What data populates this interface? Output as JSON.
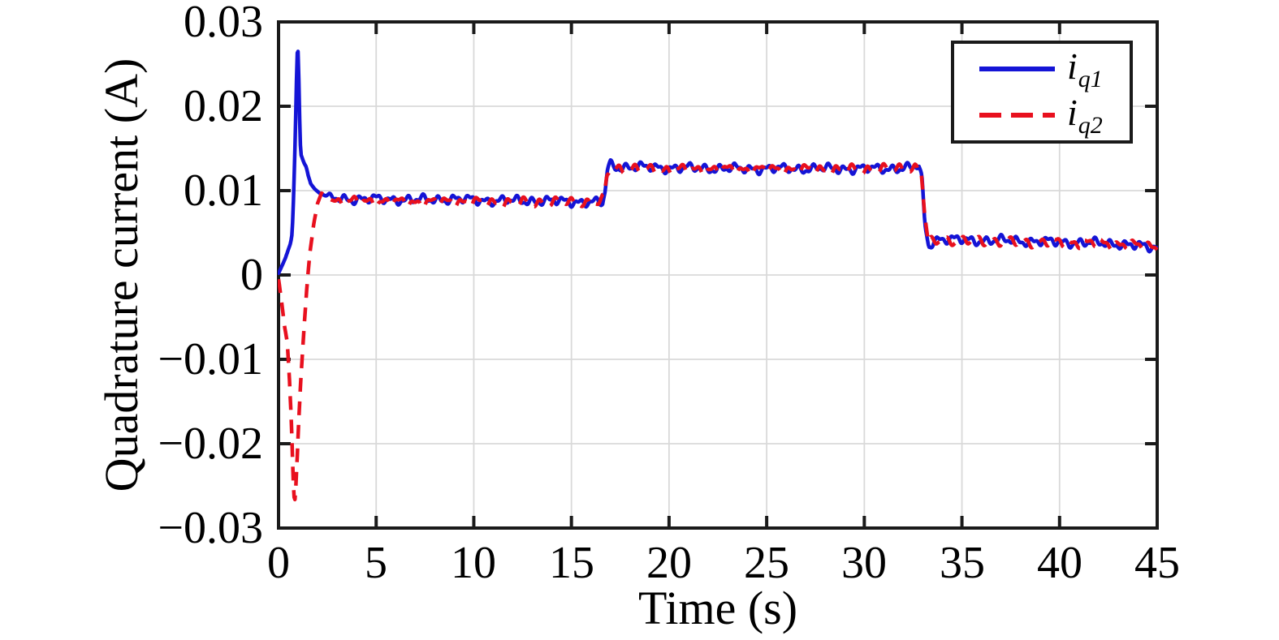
{
  "figure": {
    "background": "#ffffff"
  },
  "colors": {
    "grid": "#d9d9d9",
    "spine": "#1a1a1a",
    "text": "#000000",
    "series1": "#1414d6",
    "series2": "#e8101e"
  },
  "axes": {
    "xlabel": "Time (s)",
    "ylabel": "Quadrature current (A)",
    "x_tick_labels": [
      "0",
      "5",
      "10",
      "15",
      "20",
      "25",
      "30",
      "35",
      "40",
      "45"
    ],
    "y_tick_labels": [
      "0.03",
      "0.02",
      "0.01",
      "0",
      "−0.01",
      "−0.02",
      "−0.03"
    ]
  },
  "legend": {
    "position": "top-right",
    "entries": [
      {
        "base": "i",
        "sub": "q1",
        "color": "#1414d6",
        "style": "solid"
      },
      {
        "base": "i",
        "sub": "q2",
        "color": "#e8101e",
        "style": "dashed"
      }
    ]
  },
  "chart_data": {
    "type": "line",
    "title": "",
    "xlabel": "Time (s)",
    "ylabel": "Quadrature current (A)",
    "xlim": [
      0,
      45
    ],
    "ylim": [
      -0.03,
      0.03
    ],
    "xticks": [
      0,
      5,
      10,
      15,
      20,
      25,
      30,
      35,
      40,
      45
    ],
    "yticks": [
      -0.03,
      -0.02,
      -0.01,
      0,
      0.01,
      0.02,
      0.03
    ],
    "grid": true,
    "legend_position": "top-right",
    "description": "Two quadrature current responses: initial transient (blue spike to +0.027 A, red dip to -0.027 A near t=1 s), settling near 0.0087 A, step up to ~0.0126 A at t~16.7 s, step down to ~0.004 A at t~33.1 s, slight decay to ~0.0033 A at t=45 s.",
    "series": [
      {
        "name": "i_q1",
        "color": "#1414d6",
        "line_style": "solid",
        "line_width": 4.5,
        "keypoints": [
          [
            0,
            0.0002
          ],
          [
            0.2,
            0.0012
          ],
          [
            0.35,
            0.002
          ],
          [
            0.5,
            0.003
          ],
          [
            0.62,
            0.0038
          ],
          [
            0.7,
            0.005
          ],
          [
            0.75,
            0.008
          ],
          [
            0.82,
            0.013
          ],
          [
            0.88,
            0.019
          ],
          [
            0.93,
            0.024
          ],
          [
            0.97,
            0.0271
          ],
          [
            1.01,
            0.0263
          ],
          [
            1.06,
            0.021
          ],
          [
            1.1,
            0.016
          ],
          [
            1.16,
            0.0142
          ],
          [
            1.3,
            0.0133
          ],
          [
            1.42,
            0.0128
          ],
          [
            1.52,
            0.0118
          ],
          [
            1.65,
            0.0108
          ],
          [
            1.85,
            0.0102
          ],
          [
            2.1,
            0.0097
          ],
          [
            2.4,
            0.0094
          ],
          [
            2.8,
            0.0091
          ],
          [
            3.5,
            0.009
          ],
          [
            5,
            0.009
          ],
          [
            7,
            0.0089
          ],
          [
            9,
            0.009
          ],
          [
            11,
            0.0088
          ],
          [
            13,
            0.0088
          ],
          [
            15,
            0.0087
          ],
          [
            16.3,
            0.0086
          ],
          [
            16.6,
            0.0085
          ],
          [
            16.72,
            0.0098
          ],
          [
            16.85,
            0.0126
          ],
          [
            17.0,
            0.0131
          ],
          [
            17.3,
            0.0128
          ],
          [
            18,
            0.0128
          ],
          [
            20,
            0.0127
          ],
          [
            23,
            0.0126
          ],
          [
            26,
            0.0126
          ],
          [
            29,
            0.0126
          ],
          [
            31,
            0.0126
          ],
          [
            32.4,
            0.0127
          ],
          [
            32.8,
            0.0129
          ],
          [
            32.95,
            0.0112
          ],
          [
            33.1,
            0.006
          ],
          [
            33.3,
            0.0034
          ],
          [
            33.55,
            0.0041
          ],
          [
            33.9,
            0.0043
          ],
          [
            34.5,
            0.0042
          ],
          [
            35.5,
            0.0041
          ],
          [
            37,
            0.0041
          ],
          [
            38.5,
            0.004
          ],
          [
            40,
            0.0039
          ],
          [
            41.5,
            0.0038
          ],
          [
            43,
            0.0037
          ],
          [
            44.2,
            0.0034
          ],
          [
            45,
            0.0032
          ]
        ],
        "noise": {
          "start": 2.3,
          "components": [
            {
              "amp": 0.00035,
              "period": 0.8,
              "phase": 0.0
            },
            {
              "amp": 0.0002,
              "period": 0.37,
              "phase": 1.4
            },
            {
              "amp": 0.00015,
              "period": 2.3,
              "phase": 0.6
            }
          ]
        }
      },
      {
        "name": "i_q2",
        "color": "#e8101e",
        "line_style": "dashed",
        "line_width": 4.5,
        "dash": "17 12",
        "keypoints": [
          [
            0,
            -0.0005
          ],
          [
            0.15,
            -0.003
          ],
          [
            0.3,
            -0.006
          ],
          [
            0.45,
            -0.008
          ],
          [
            0.55,
            -0.012
          ],
          [
            0.65,
            -0.017
          ],
          [
            0.72,
            -0.022
          ],
          [
            0.78,
            -0.0262
          ],
          [
            0.85,
            -0.0267
          ],
          [
            0.95,
            -0.022
          ],
          [
            1.05,
            -0.0165
          ],
          [
            1.15,
            -0.012
          ],
          [
            1.3,
            -0.0065
          ],
          [
            1.45,
            -0.0015
          ],
          [
            1.6,
            0.0025
          ],
          [
            1.8,
            0.006
          ],
          [
            2.0,
            0.0085
          ],
          [
            2.2,
            0.0097
          ],
          [
            2.4,
            0.0094
          ],
          [
            2.7,
            0.0089
          ],
          [
            3.2,
            0.0087
          ],
          [
            5,
            0.0087
          ],
          [
            7,
            0.0086
          ],
          [
            9,
            0.0087
          ],
          [
            11,
            0.0086
          ],
          [
            13,
            0.0086
          ],
          [
            15,
            0.0086
          ],
          [
            16.4,
            0.0085
          ],
          [
            16.68,
            0.009
          ],
          [
            16.82,
            0.012
          ],
          [
            17.0,
            0.0126
          ],
          [
            17.4,
            0.0126
          ],
          [
            19,
            0.0125
          ],
          [
            21,
            0.0125
          ],
          [
            24,
            0.0125
          ],
          [
            27,
            0.0125
          ],
          [
            30,
            0.0125
          ],
          [
            32,
            0.0126
          ],
          [
            32.6,
            0.0127
          ],
          [
            32.92,
            0.0123
          ],
          [
            33.08,
            0.0075
          ],
          [
            33.28,
            0.0038
          ],
          [
            33.55,
            0.0039
          ],
          [
            34,
            0.0041
          ],
          [
            35,
            0.004
          ],
          [
            36.5,
            0.004
          ],
          [
            38,
            0.0039
          ],
          [
            39.5,
            0.0039
          ],
          [
            41,
            0.0038
          ],
          [
            42.5,
            0.0037
          ],
          [
            44,
            0.0035
          ],
          [
            45,
            0.0034
          ]
        ],
        "noise": {
          "start": 2.7,
          "components": [
            {
              "amp": 0.00035,
              "period": 0.8,
              "phase": 3.1
            },
            {
              "amp": 0.0002,
              "period": 0.41,
              "phase": 4.4
            },
            {
              "amp": 0.00015,
              "period": 2.1,
              "phase": 2.2
            }
          ]
        }
      }
    ]
  }
}
